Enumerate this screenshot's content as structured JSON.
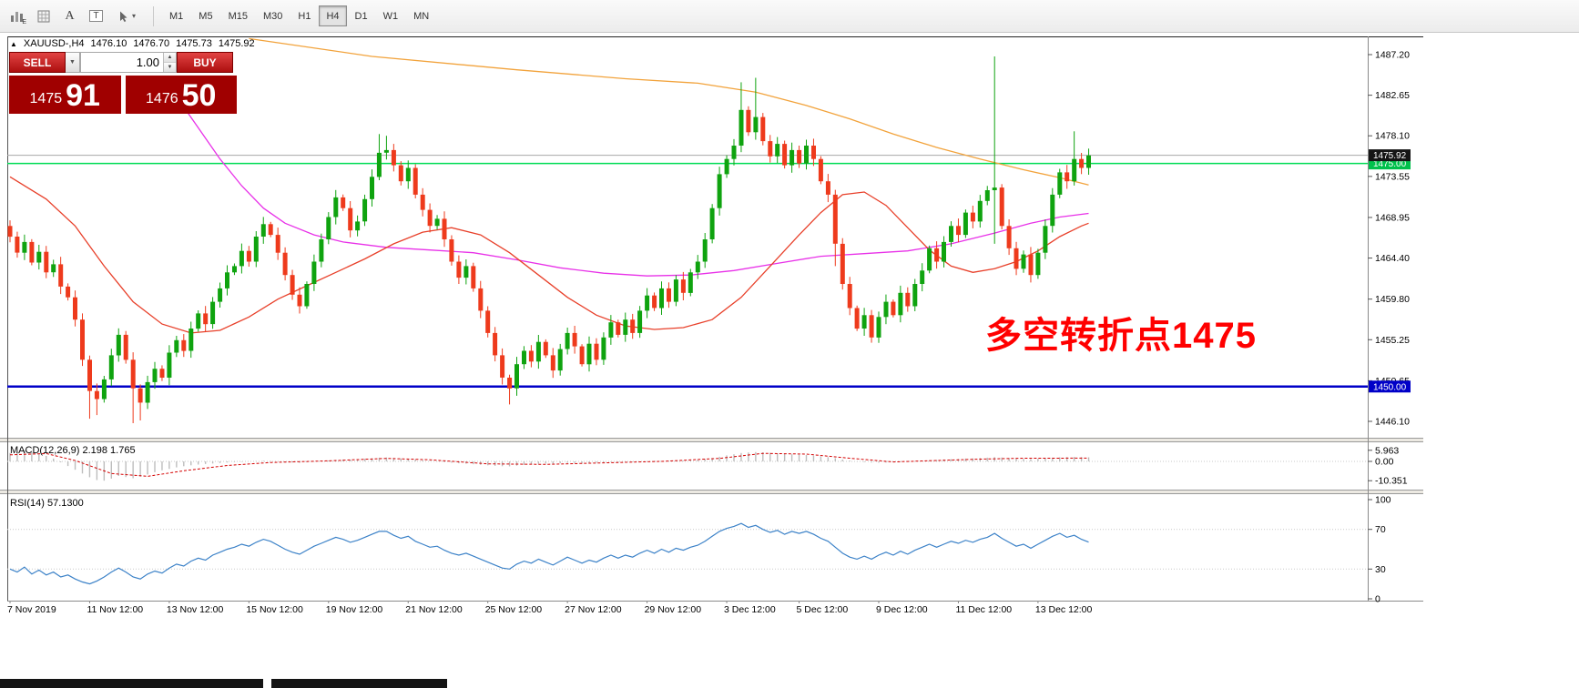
{
  "toolbar": {
    "icons": [
      {
        "name": "bar-chart-icon",
        "sub": "E"
      },
      {
        "name": "grid-icon",
        "sub": ""
      },
      {
        "name": "text-label-icon",
        "glyph": "A"
      },
      {
        "name": "text-box-icon",
        "glyph": "T"
      },
      {
        "name": "cursor-arrow-icon",
        "caret": "▾"
      }
    ],
    "timeframes": [
      {
        "label": "M1",
        "active": false
      },
      {
        "label": "M5",
        "active": false
      },
      {
        "label": "M15",
        "active": false
      },
      {
        "label": "M30",
        "active": false
      },
      {
        "label": "H1",
        "active": false
      },
      {
        "label": "H4",
        "active": true
      },
      {
        "label": "D1",
        "active": false
      },
      {
        "label": "W1",
        "active": false
      },
      {
        "label": "MN",
        "active": false
      }
    ]
  },
  "chart": {
    "header": {
      "collapse_icon": "▲",
      "symbol": "XAUUSD-,H4",
      "open": "1476.10",
      "high": "1476.70",
      "low": "1475.73",
      "close": "1475.92"
    },
    "one_click": {
      "sell_label": "SELL",
      "buy_label": "BUY",
      "volume": "1.00",
      "spin_up": "▲",
      "spin_down": "▼",
      "dropdown": "▼",
      "sell_price_big": "1475",
      "sell_price_pips": "91",
      "buy_price_big": "1476",
      "buy_price_pips": "50"
    },
    "annotation": {
      "text": "多空转折点1475",
      "color": "#FF0000"
    },
    "price_scale": [
      "1487.20",
      "1482.65",
      "1478.10",
      "1473.55",
      "1468.95",
      "1464.40",
      "1459.80",
      "1455.25",
      "1450.65",
      "1446.10"
    ],
    "dates": [
      {
        "label": "7 Nov 2019",
        "i": 0
      },
      {
        "label": "11 Nov 12:00",
        "i": 11
      },
      {
        "label": "13 Nov 12:00",
        "i": 22
      },
      {
        "label": "15 Nov 12:00",
        "i": 33
      },
      {
        "label": "19 Nov 12:00",
        "i": 44
      },
      {
        "label": "21 Nov 12:00",
        "i": 55
      },
      {
        "label": "25 Nov 12:00",
        "i": 66
      },
      {
        "label": "27 Nov 12:00",
        "i": 77
      },
      {
        "label": "29 Nov 12:00",
        "i": 88
      },
      {
        "label": "3 Dec 12:00",
        "i": 99
      },
      {
        "label": "5 Dec 12:00",
        "i": 109
      },
      {
        "label": "9 Dec 12:00",
        "i": 120
      },
      {
        "label": "11 Dec 12:00",
        "i": 131
      },
      {
        "label": "13 Dec 12:00",
        "i": 142
      }
    ]
  },
  "macd": {
    "label": "MACD(12,26,9) 2.198 1.765",
    "scale": [
      "5.963",
      "0.00",
      "-10.351"
    ]
  },
  "rsi": {
    "label": "RSI(14) 57.1300",
    "scale": [
      "100",
      "70",
      "30",
      "0"
    ]
  },
  "chart_data": {
    "type": "candlestick",
    "symbol": "XAUUSD-",
    "timeframe": "H4",
    "visible_price_range": {
      "min": 1444.5,
      "max": 1489.3
    },
    "hlines": [
      {
        "label": "1475.00",
        "price": 1475.0,
        "line_color": "#00DC55",
        "width": 1.5,
        "tag_bg": "#00C04B",
        "tag_fg": "#FFFFFF"
      },
      {
        "label": "1450.00",
        "price": 1450.0,
        "line_color": "#0000C8",
        "width": 2.5,
        "tag_bg": "#0000C8",
        "tag_fg": "#FFFFFF"
      },
      {
        "label": "1475.92",
        "price": 1475.92,
        "line_color": "#A8A8A8",
        "width": 1,
        "tag_bg": "#151515",
        "tag_fg": "#FFFFFF"
      }
    ],
    "candles": {
      "up_color": "#0FA30F",
      "down_color": "#EE3A1C",
      "first_open": 1468.0,
      "closes": [
        1466.8,
        1465.0,
        1466.2,
        1463.9,
        1465.1,
        1462.8,
        1463.7,
        1461.2,
        1460.0,
        1457.5,
        1453.0,
        1449.5,
        1448.6,
        1450.8,
        1453.5,
        1455.8,
        1453.0,
        1449.8,
        1448.2,
        1450.5,
        1452.0,
        1451.0,
        1453.8,
        1455.2,
        1454.0,
        1456.5,
        1458.2,
        1457.0,
        1459.5,
        1461.0,
        1462.8,
        1463.5,
        1465.2,
        1464.0,
        1466.8,
        1468.2,
        1467.0,
        1465.0,
        1462.5,
        1460.3,
        1459.0,
        1461.5,
        1464.0,
        1466.5,
        1469.0,
        1471.2,
        1470.0,
        1467.5,
        1468.5,
        1471.0,
        1473.5,
        1476.2,
        1476.5,
        1474.8,
        1473.0,
        1474.5,
        1471.5,
        1469.8,
        1468.0,
        1468.8,
        1466.5,
        1464.0,
        1462.2,
        1463.5,
        1461.0,
        1458.5,
        1456.0,
        1453.5,
        1451.0,
        1449.8,
        1452.5,
        1454.0,
        1452.8,
        1455.0,
        1453.5,
        1451.8,
        1454.2,
        1456.0,
        1454.5,
        1452.5,
        1454.8,
        1453.0,
        1455.5,
        1457.2,
        1455.8,
        1457.5,
        1456.0,
        1458.5,
        1460.2,
        1458.8,
        1461.0,
        1459.5,
        1462.0,
        1460.5,
        1462.8,
        1464.0,
        1466.5,
        1470.0,
        1473.8,
        1475.5,
        1477.0,
        1481.0,
        1478.5,
        1480.2,
        1477.5,
        1475.8,
        1477.2,
        1474.8,
        1476.5,
        1475.0,
        1477.0,
        1475.5,
        1473.0,
        1471.5,
        1466.0,
        1461.5,
        1458.8,
        1456.5,
        1458.0,
        1455.5,
        1457.8,
        1459.5,
        1458.0,
        1460.5,
        1459.0,
        1461.5,
        1463.0,
        1465.5,
        1464.0,
        1466.2,
        1468.0,
        1467.0,
        1469.5,
        1468.5,
        1470.8,
        1472.0,
        1472.3,
        1468.0,
        1465.5,
        1463.2,
        1464.8,
        1462.5,
        1465.0,
        1468.0,
        1471.5,
        1474.0,
        1473.0,
        1475.5,
        1474.5,
        1475.9
      ],
      "overrides": {
        "11": {
          "low": 1446.4
        },
        "12": {
          "low": 1446.8
        },
        "17": {
          "low": 1445.9
        },
        "18": {
          "low": 1446.2
        },
        "51": {
          "high": 1478.3
        },
        "52": {
          "high": 1478.1
        },
        "69": {
          "low": 1448.0
        },
        "101": {
          "high": 1484.1
        },
        "103": {
          "high": 1484.6
        },
        "114": {
          "low": 1463.5
        },
        "136": {
          "high": 1487.0,
          "low": 1466.0
        },
        "147": {
          "high": 1478.6
        }
      }
    },
    "moving_averages": [
      {
        "name": "slow-orange",
        "color": "#F2A33C",
        "points": [
          [
            33,
            1489.0
          ],
          [
            50,
            1487.0
          ],
          [
            70,
            1485.5
          ],
          [
            85,
            1484.5
          ],
          [
            95,
            1484.0
          ],
          [
            103,
            1483.0
          ],
          [
            110,
            1481.5
          ],
          [
            116,
            1480.0
          ],
          [
            122,
            1478.3
          ],
          [
            128,
            1476.8
          ],
          [
            134,
            1475.5
          ],
          [
            140,
            1474.3
          ],
          [
            145,
            1473.4
          ],
          [
            149,
            1472.6
          ]
        ]
      },
      {
        "name": "mid-magenta",
        "color": "#E831E8",
        "points": [
          [
            23,
            1482.5
          ],
          [
            26,
            1479.0
          ],
          [
            29,
            1475.5
          ],
          [
            32,
            1472.5
          ],
          [
            35,
            1470.0
          ],
          [
            38,
            1468.3
          ],
          [
            42,
            1467.0
          ],
          [
            46,
            1466.2
          ],
          [
            52,
            1465.6
          ],
          [
            58,
            1465.3
          ],
          [
            64,
            1465.0
          ],
          [
            70,
            1464.2
          ],
          [
            76,
            1463.3
          ],
          [
            82,
            1462.7
          ],
          [
            88,
            1462.4
          ],
          [
            94,
            1462.5
          ],
          [
            100,
            1463.0
          ],
          [
            106,
            1463.8
          ],
          [
            112,
            1464.6
          ],
          [
            118,
            1464.9
          ],
          [
            124,
            1465.2
          ],
          [
            130,
            1466.0
          ],
          [
            136,
            1467.2
          ],
          [
            141,
            1468.3
          ],
          [
            145,
            1469.0
          ],
          [
            149,
            1469.4
          ]
        ]
      },
      {
        "name": "fast-red",
        "color": "#E8402A",
        "points": [
          [
            0,
            1473.5
          ],
          [
            5,
            1471.0
          ],
          [
            9,
            1468.0
          ],
          [
            13,
            1463.5
          ],
          [
            17,
            1459.5
          ],
          [
            21,
            1457.0
          ],
          [
            25,
            1456.0
          ],
          [
            29,
            1456.3
          ],
          [
            33,
            1457.8
          ],
          [
            37,
            1459.8
          ],
          [
            41,
            1461.3
          ],
          [
            45,
            1462.8
          ],
          [
            49,
            1464.3
          ],
          [
            53,
            1466.0
          ],
          [
            57,
            1467.3
          ],
          [
            61,
            1467.8
          ],
          [
            65,
            1467.0
          ],
          [
            69,
            1465.0
          ],
          [
            73,
            1462.5
          ],
          [
            77,
            1460.0
          ],
          [
            81,
            1458.0
          ],
          [
            85,
            1456.8
          ],
          [
            89,
            1456.4
          ],
          [
            93,
            1456.6
          ],
          [
            97,
            1457.5
          ],
          [
            101,
            1460.0
          ],
          [
            105,
            1463.5
          ],
          [
            109,
            1467.0
          ],
          [
            112,
            1469.5
          ],
          [
            115,
            1471.5
          ],
          [
            118,
            1471.8
          ],
          [
            121,
            1470.3
          ],
          [
            124,
            1467.8
          ],
          [
            127,
            1465.3
          ],
          [
            130,
            1463.5
          ],
          [
            133,
            1462.8
          ],
          [
            136,
            1463.2
          ],
          [
            139,
            1464.0
          ],
          [
            142,
            1465.2
          ],
          [
            145,
            1466.8
          ],
          [
            148,
            1468.0
          ],
          [
            149,
            1468.3
          ]
        ]
      }
    ],
    "indicators": {
      "macd": {
        "params": "12,26,9",
        "value": 2.198,
        "signal_value": 1.765,
        "hist_color": "#BDBDBD",
        "signal_color": "#D40000",
        "histogram": [
          4.5,
          5.2,
          5.9,
          5.0,
          4.2,
          3.0,
          1.5,
          -0.5,
          -2.5,
          -4.5,
          -6.5,
          -8.5,
          -10.0,
          -10.35,
          -9.2,
          -7.8,
          -8.4,
          -9.0,
          -8.2,
          -7.0,
          -5.8,
          -4.8,
          -4.0,
          -3.2,
          -2.6,
          -2.1,
          -1.7,
          -1.4,
          -1.1,
          -0.9,
          -0.6,
          -0.4,
          -0.2,
          0.0,
          0.2,
          0.3,
          0.2,
          0.0,
          -0.3,
          -0.6,
          -0.8,
          -0.5,
          -0.2,
          0.2,
          0.5,
          0.8,
          1.0,
          0.9,
          1.1,
          1.4,
          1.7,
          2.0,
          2.1,
          1.8,
          1.5,
          1.3,
          1.0,
          0.6,
          0.2,
          -0.1,
          -0.4,
          -0.7,
          -1.0,
          -1.2,
          -1.5,
          -1.8,
          -2.1,
          -2.4,
          -2.6,
          -2.7,
          -2.3,
          -1.9,
          -1.6,
          -1.3,
          -1.1,
          -1.2,
          -1.0,
          -0.8,
          -0.9,
          -1.1,
          -0.9,
          -0.7,
          -0.5,
          -0.3,
          -0.4,
          -0.2,
          -0.3,
          -0.1,
          0.1,
          0.3,
          0.2,
          0.3,
          0.5,
          0.4,
          0.6,
          0.8,
          1.2,
          1.8,
          2.5,
          3.2,
          3.8,
          4.5,
          4.8,
          5.0,
          4.9,
          4.6,
          4.3,
          4.0,
          3.8,
          3.6,
          3.4,
          3.1,
          2.8,
          2.3,
          1.7,
          1.0,
          0.4,
          -0.1,
          -0.4,
          -0.6,
          -0.7,
          -0.6,
          -0.4,
          -0.2,
          -0.1,
          0.1,
          0.3,
          0.6,
          0.8,
          1.0,
          1.2,
          1.3,
          1.5,
          1.6,
          1.8,
          2.0,
          2.3,
          2.1,
          1.8,
          1.5,
          1.3,
          1.2,
          1.4,
          1.7,
          2.0,
          2.2,
          2.3,
          2.4,
          2.3,
          2.198
        ],
        "signal_points": [
          [
            0,
            3.5
          ],
          [
            5,
            4.2
          ],
          [
            9,
            0.5
          ],
          [
            14,
            -6.5
          ],
          [
            19,
            -8.0
          ],
          [
            24,
            -5.0
          ],
          [
            30,
            -2.2
          ],
          [
            36,
            -0.6
          ],
          [
            44,
            0.3
          ],
          [
            52,
            1.6
          ],
          [
            58,
            0.9
          ],
          [
            66,
            -1.3
          ],
          [
            74,
            -1.6
          ],
          [
            82,
            -0.8
          ],
          [
            90,
            0.0
          ],
          [
            98,
            1.6
          ],
          [
            104,
            4.3
          ],
          [
            110,
            3.9
          ],
          [
            116,
            1.7
          ],
          [
            122,
            -0.3
          ],
          [
            128,
            0.5
          ],
          [
            134,
            1.2
          ],
          [
            140,
            1.7
          ],
          [
            149,
            1.765
          ]
        ]
      },
      "rsi": {
        "period": 14,
        "value": 57.13,
        "color": "#3C82C8",
        "levels": [
          70,
          30
        ],
        "values": [
          30,
          27,
          32,
          25,
          29,
          24,
          27,
          22,
          24,
          20,
          17,
          15,
          18,
          22,
          27,
          31,
          27,
          22,
          20,
          25,
          28,
          26,
          31,
          35,
          33,
          38,
          41,
          39,
          44,
          47,
          50,
          52,
          55,
          53,
          57,
          60,
          58,
          54,
          50,
          47,
          45,
          49,
          53,
          56,
          59,
          62,
          60,
          57,
          59,
          62,
          65,
          68,
          68,
          64,
          61,
          63,
          58,
          55,
          52,
          53,
          49,
          46,
          44,
          46,
          43,
          40,
          37,
          34,
          31,
          30,
          35,
          38,
          36,
          40,
          37,
          34,
          38,
          42,
          39,
          36,
          39,
          37,
          41,
          44,
          41,
          44,
          42,
          46,
          49,
          46,
          50,
          47,
          51,
          49,
          52,
          54,
          58,
          63,
          68,
          71,
          73,
          76,
          72,
          74,
          70,
          67,
          69,
          65,
          68,
          66,
          68,
          65,
          61,
          58,
          52,
          46,
          42,
          40,
          43,
          40,
          44,
          47,
          44,
          48,
          45,
          49,
          52,
          55,
          52,
          55,
          58,
          56,
          59,
          57,
          60,
          62,
          66,
          61,
          57,
          53,
          55,
          51,
          55,
          59,
          63,
          66,
          62,
          64,
          60,
          57.13
        ]
      }
    }
  }
}
